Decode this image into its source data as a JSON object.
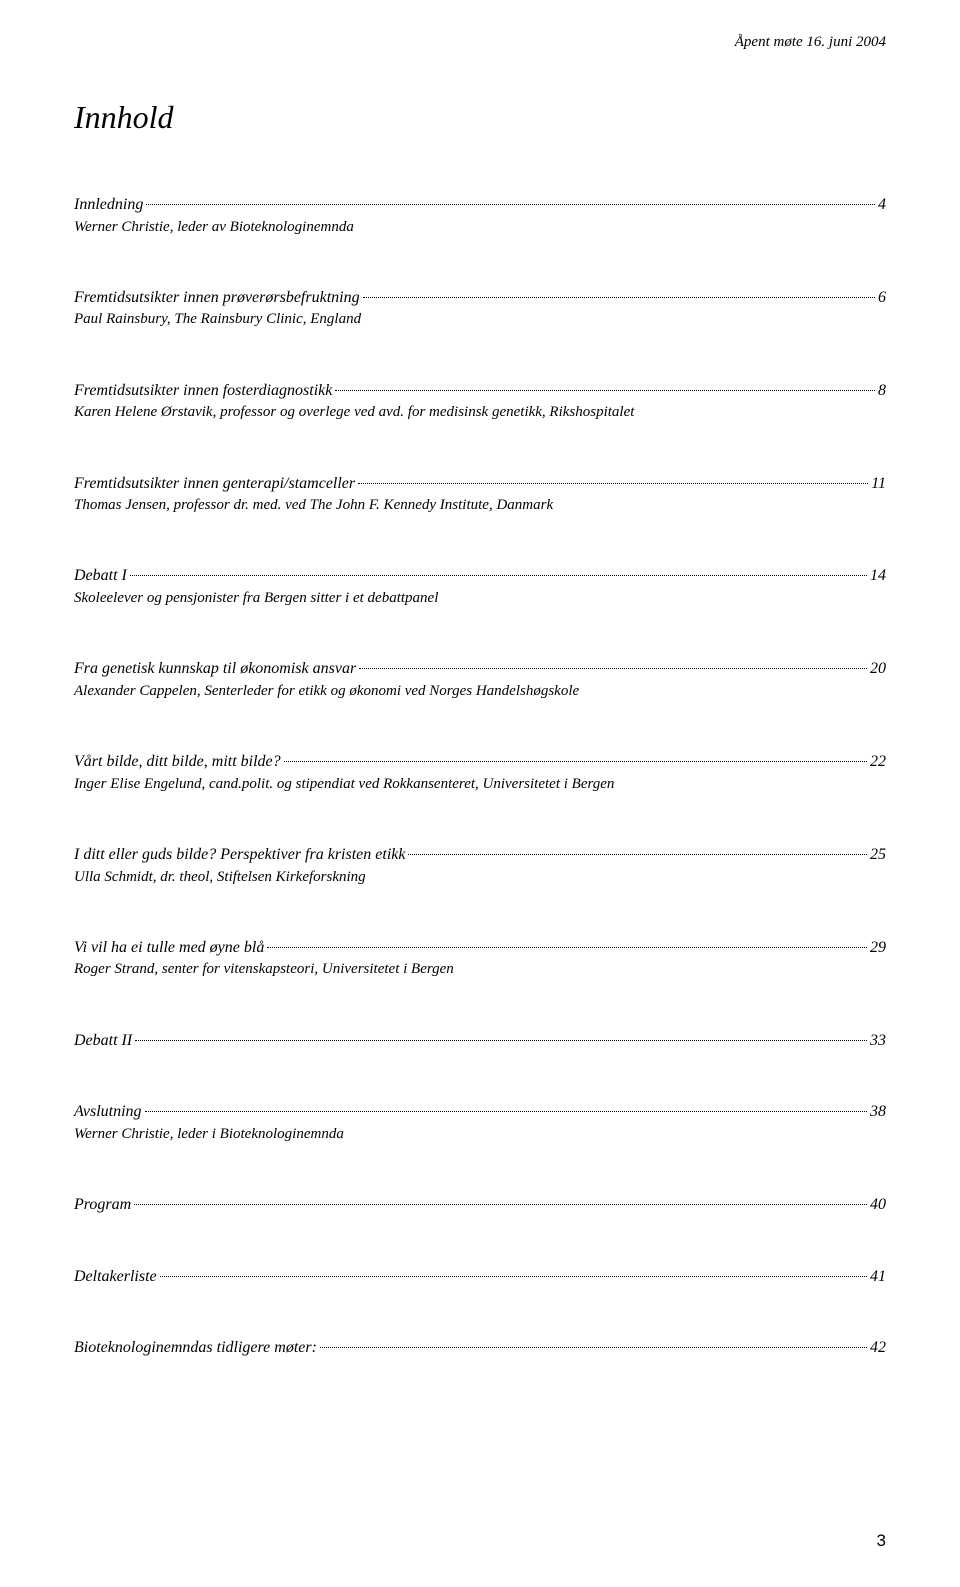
{
  "header": {
    "text": "Åpent møte 16. juni 2004"
  },
  "title": "Innhold",
  "entries": [
    {
      "title": "Innledning",
      "page": "4",
      "sub": "Werner Christie, leder av Bioteknologinemnda"
    },
    {
      "title": "Fremtidsutsikter innen prøverørsbefruktning",
      "page": "6",
      "sub": "Paul Rainsbury, The Rainsbury Clinic, England"
    },
    {
      "title": "Fremtidsutsikter innen fosterdiagnostikk ",
      "page": "8",
      "sub": "Karen Helene Ørstavik, professor og overlege ved avd. for medisinsk genetikk, Rikshospitalet"
    },
    {
      "title": "Fremtidsutsikter innen genterapi/stamceller ",
      "page": "11",
      "sub": "Thomas Jensen, professor dr. med. ved The John F. Kennedy Institute, Danmark"
    },
    {
      "title": "Debatt I ",
      "page": "14",
      "sub": "Skoleelever og pensjonister fra Bergen sitter i et debattpanel"
    },
    {
      "title": "Fra genetisk kunnskap til økonomisk ansvar ",
      "page": "20",
      "sub": "Alexander Cappelen, Senterleder for etikk og økonomi ved Norges Handelshøgskole"
    },
    {
      "title": "Vårt bilde, ditt bilde, mitt bilde?",
      "page": "22",
      "sub": "Inger Elise Engelund, cand.polit. og stipendiat ved Rokkansenteret, Universitetet i Bergen"
    },
    {
      "title": "I ditt eller guds bilde? Perspektiver fra kristen etikk",
      "page": "25",
      "sub": "Ulla Schmidt, dr. theol, Stiftelsen Kirkeforskning"
    },
    {
      "title": "Vi vil ha ei tulle med øyne blå",
      "page": "29",
      "sub": "Roger Strand, senter for vitenskapsteori, Universitetet i Bergen"
    },
    {
      "title": "Debatt II",
      "page": "33",
      "sub": ""
    },
    {
      "title": "Avslutning ",
      "page": "38",
      "sub": "Werner Christie, leder i Bioteknologinemnda"
    },
    {
      "title": "Program",
      "page": "40",
      "sub": ""
    },
    {
      "title": "Deltakerliste",
      "page": "41",
      "sub": ""
    },
    {
      "title": "Bioteknologinemndas tidligere møter:",
      "page": "42",
      "sub": ""
    }
  ],
  "pageNumber": "3"
}
